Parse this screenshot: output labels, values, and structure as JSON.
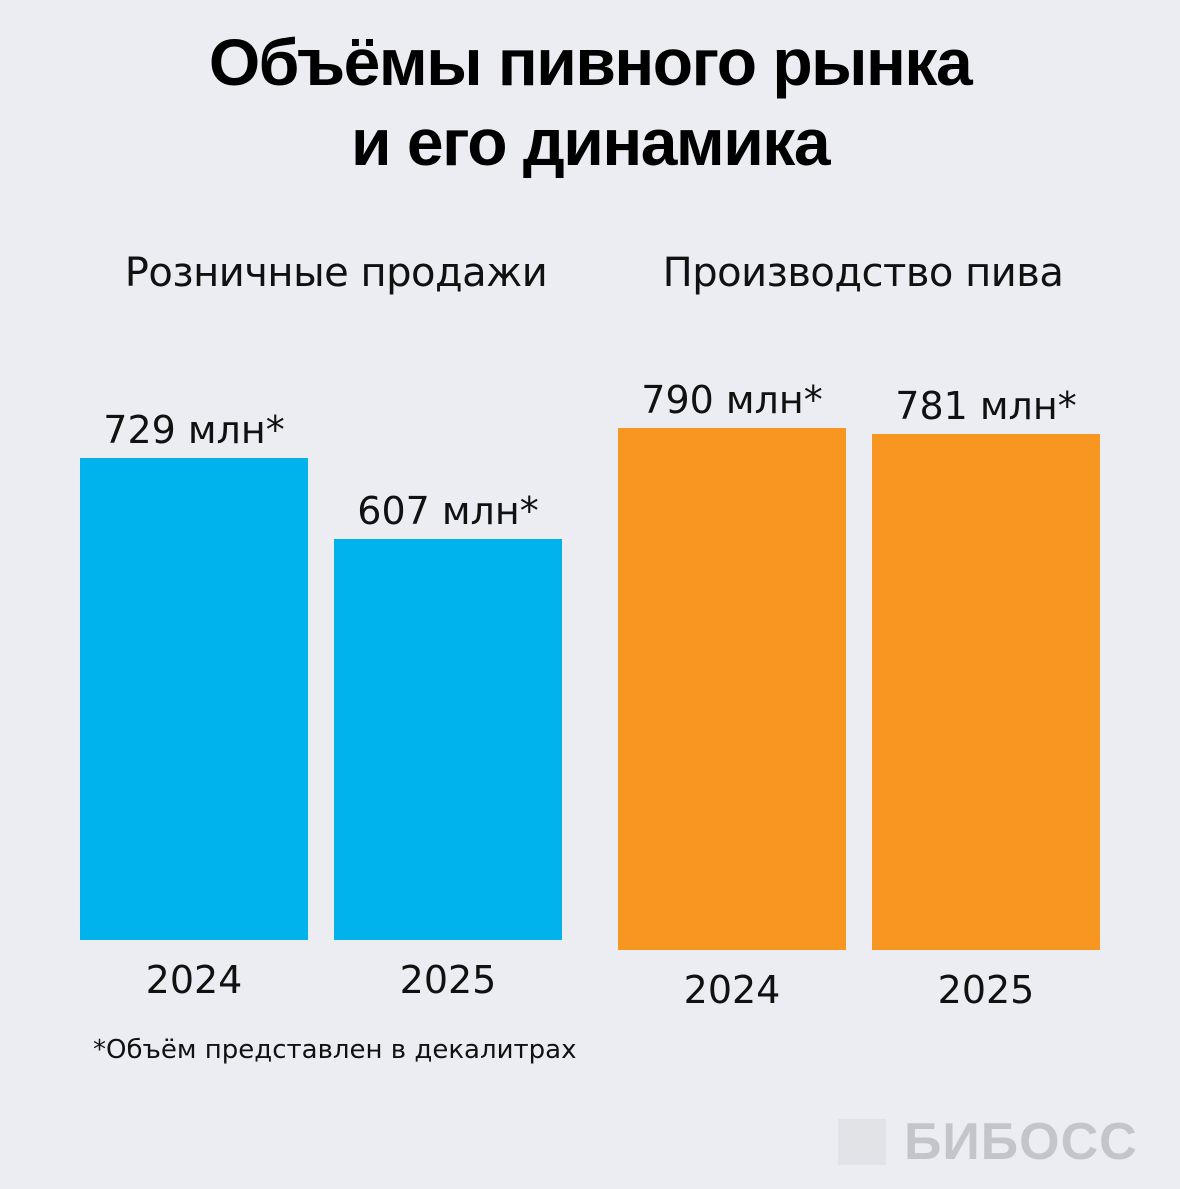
{
  "title_line1": "Объёмы пивного рынка",
  "title_line2": "и его динамика",
  "footnote": "*Объём представлен в декалитрах",
  "logo_text": "БИБОСС",
  "chart_data": [
    {
      "type": "bar",
      "title": "Розничные продажи",
      "categories": [
        "2024",
        "2025"
      ],
      "values": [
        729,
        607
      ],
      "value_labels": [
        "729 млн*",
        "607 млн*"
      ],
      "unit": "млн декалитров",
      "color": "#00b3ec"
    },
    {
      "type": "bar",
      "title": "Производство пива",
      "categories": [
        "2024",
        "2025"
      ],
      "values": [
        790,
        781
      ],
      "value_labels": [
        "790 млн*",
        "781 млн*"
      ],
      "unit": "млн декалитров",
      "color": "#f79722"
    }
  ]
}
